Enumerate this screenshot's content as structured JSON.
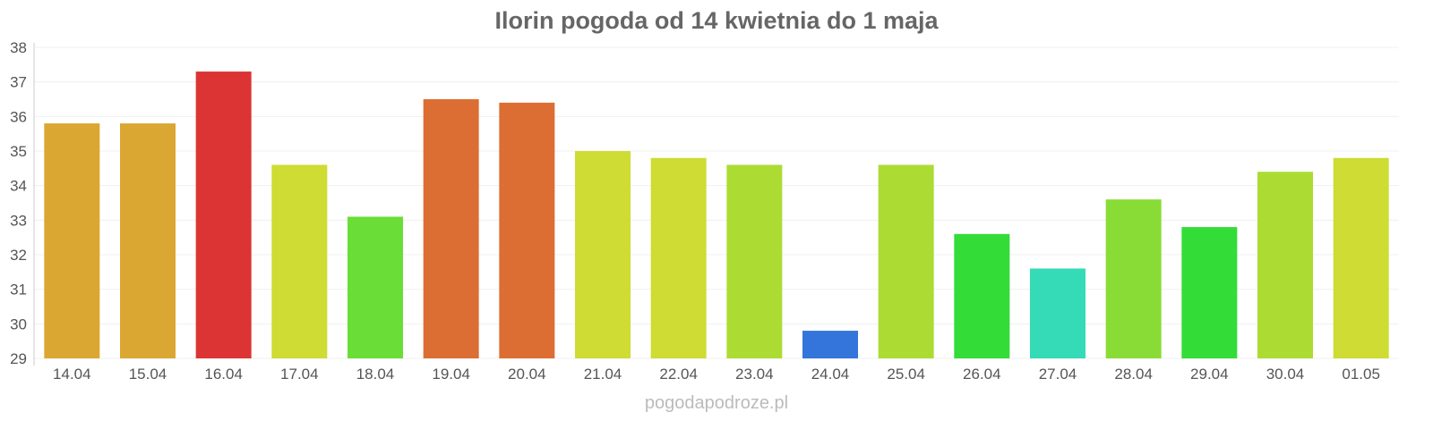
{
  "chart_data": {
    "type": "bar",
    "title": "Ilorin pogoda od 14 kwietnia do 1 maja",
    "xlabel": "",
    "ylabel": "",
    "ylim": [
      29,
      38
    ],
    "yticks": [
      29,
      30,
      31,
      32,
      33,
      34,
      35,
      36,
      37,
      38
    ],
    "grid": true,
    "categories": [
      "14.04",
      "15.04",
      "16.04",
      "17.04",
      "18.04",
      "19.04",
      "20.04",
      "21.04",
      "22.04",
      "23.04",
      "24.04",
      "25.04",
      "26.04",
      "27.04",
      "28.04",
      "29.04",
      "30.04",
      "01.05"
    ],
    "values": [
      35.8,
      35.8,
      37.3,
      34.6,
      33.1,
      36.5,
      36.4,
      35.0,
      34.8,
      34.6,
      29.8,
      34.6,
      32.6,
      31.6,
      33.6,
      32.8,
      34.4,
      34.8
    ],
    "colors": [
      "#dba733",
      "#dba733",
      "#dc3434",
      "#cedc33",
      "#6add37",
      "#dc6e34",
      "#dc6e34",
      "#cedc33",
      "#cedc33",
      "#acdc33",
      "#3475dc",
      "#acdc33",
      "#33dc37",
      "#34dbb6",
      "#89dc36",
      "#33dc37",
      "#acdc33",
      "#cedc33"
    ]
  },
  "footer": "pogodapodroze.pl"
}
